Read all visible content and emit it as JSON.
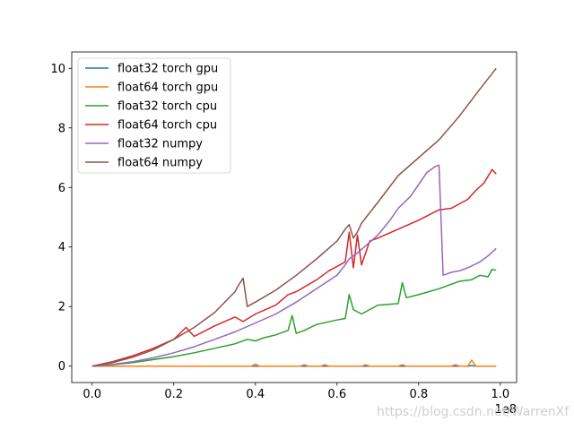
{
  "chart_data": {
    "type": "line",
    "xlabel": "",
    "ylabel": "",
    "x_offset_label": "1e8",
    "xlim": [
      -0.05,
      1.04
    ],
    "ylim": [
      -0.55,
      10.55
    ],
    "xticks": [
      0.0,
      0.2,
      0.4,
      0.6,
      0.8,
      1.0
    ],
    "xtick_labels": [
      "0.0",
      "0.2",
      "0.4",
      "0.6",
      "0.8",
      "1.0"
    ],
    "yticks": [
      0,
      2,
      4,
      6,
      8,
      10
    ],
    "ytick_labels": [
      "0",
      "2",
      "4",
      "6",
      "8",
      "10"
    ],
    "grid": false,
    "legend_position": "top-left",
    "series": [
      {
        "name": "float32 torch gpu",
        "color": "#1f77b4",
        "x": [
          0.0,
          0.2,
          0.4,
          0.6,
          0.8,
          0.92,
          0.93,
          0.94,
          0.99
        ],
        "y": [
          0.0,
          0.0,
          0.0,
          0.0,
          0.0,
          0.0,
          0.02,
          0.0,
          0.0
        ]
      },
      {
        "name": "float64 torch gpu",
        "color": "#ff7f0e",
        "x": [
          0.0,
          0.3,
          0.39,
          0.4,
          0.41,
          0.51,
          0.52,
          0.53,
          0.56,
          0.57,
          0.58,
          0.66,
          0.67,
          0.68,
          0.75,
          0.76,
          0.77,
          0.88,
          0.89,
          0.9,
          0.92,
          0.93,
          0.94,
          0.99
        ],
        "y": [
          0.0,
          0.0,
          0.0,
          0.07,
          0.0,
          0.0,
          0.05,
          0.0,
          0.0,
          0.05,
          0.0,
          0.0,
          0.05,
          0.0,
          0.0,
          0.05,
          0.0,
          0.0,
          0.05,
          0.0,
          0.0,
          0.2,
          0.0,
          0.0
        ]
      },
      {
        "name": "float32 torch cpu",
        "color": "#2ca02c",
        "x": [
          0.0,
          0.05,
          0.1,
          0.15,
          0.2,
          0.25,
          0.3,
          0.35,
          0.38,
          0.4,
          0.42,
          0.45,
          0.48,
          0.49,
          0.5,
          0.52,
          0.55,
          0.6,
          0.62,
          0.63,
          0.64,
          0.66,
          0.7,
          0.75,
          0.76,
          0.77,
          0.8,
          0.85,
          0.9,
          0.93,
          0.95,
          0.97,
          0.98,
          0.99
        ],
        "y": [
          0.0,
          0.05,
          0.12,
          0.22,
          0.32,
          0.45,
          0.6,
          0.75,
          0.9,
          0.85,
          0.95,
          1.05,
          1.2,
          1.7,
          1.1,
          1.2,
          1.4,
          1.55,
          1.6,
          2.4,
          1.9,
          1.75,
          2.05,
          2.1,
          2.8,
          2.3,
          2.4,
          2.6,
          2.85,
          2.9,
          3.05,
          3.0,
          3.25,
          3.22
        ]
      },
      {
        "name": "float64 torch cpu",
        "color": "#d62728",
        "x": [
          0.0,
          0.05,
          0.1,
          0.15,
          0.2,
          0.23,
          0.25,
          0.3,
          0.35,
          0.37,
          0.4,
          0.45,
          0.48,
          0.5,
          0.55,
          0.58,
          0.62,
          0.63,
          0.64,
          0.65,
          0.66,
          0.68,
          0.7,
          0.75,
          0.8,
          0.85,
          0.88,
          0.9,
          0.92,
          0.94,
          0.96,
          0.98,
          0.99
        ],
        "y": [
          0.0,
          0.15,
          0.35,
          0.6,
          0.9,
          1.3,
          1.0,
          1.35,
          1.65,
          1.5,
          1.75,
          2.05,
          2.4,
          2.5,
          2.9,
          3.2,
          3.5,
          4.5,
          3.3,
          4.4,
          3.4,
          4.2,
          4.3,
          4.6,
          4.9,
          5.25,
          5.3,
          5.45,
          5.6,
          5.9,
          6.15,
          6.6,
          6.45
        ]
      },
      {
        "name": "float32 numpy",
        "color": "#9467bd",
        "x": [
          0.0,
          0.05,
          0.1,
          0.15,
          0.2,
          0.25,
          0.3,
          0.35,
          0.4,
          0.45,
          0.5,
          0.55,
          0.6,
          0.62,
          0.63,
          0.65,
          0.7,
          0.73,
          0.75,
          0.78,
          0.8,
          0.82,
          0.84,
          0.85,
          0.86,
          0.88,
          0.9,
          0.92,
          0.95,
          0.97,
          0.99
        ],
        "y": [
          0.0,
          0.06,
          0.15,
          0.28,
          0.45,
          0.65,
          0.9,
          1.15,
          1.45,
          1.75,
          2.15,
          2.6,
          3.05,
          3.4,
          3.6,
          3.8,
          4.4,
          4.9,
          5.3,
          5.7,
          6.1,
          6.5,
          6.7,
          6.75,
          3.05,
          3.15,
          3.2,
          3.3,
          3.5,
          3.7,
          3.95
        ]
      },
      {
        "name": "float64 numpy",
        "color": "#8c564b",
        "x": [
          0.0,
          0.05,
          0.1,
          0.15,
          0.2,
          0.25,
          0.3,
          0.35,
          0.36,
          0.37,
          0.38,
          0.4,
          0.45,
          0.5,
          0.55,
          0.6,
          0.62,
          0.63,
          0.64,
          0.65,
          0.66,
          0.7,
          0.75,
          0.8,
          0.85,
          0.9,
          0.95,
          0.99
        ],
        "y": [
          0.0,
          0.12,
          0.3,
          0.55,
          0.9,
          1.3,
          1.8,
          2.5,
          2.75,
          2.95,
          2.0,
          2.15,
          2.55,
          3.05,
          3.6,
          4.2,
          4.6,
          4.75,
          4.3,
          4.5,
          4.8,
          5.5,
          6.4,
          7.0,
          7.6,
          8.4,
          9.3,
          10.0
        ]
      }
    ]
  },
  "watermark": "https://blog.csdn.net/WarrenXf"
}
